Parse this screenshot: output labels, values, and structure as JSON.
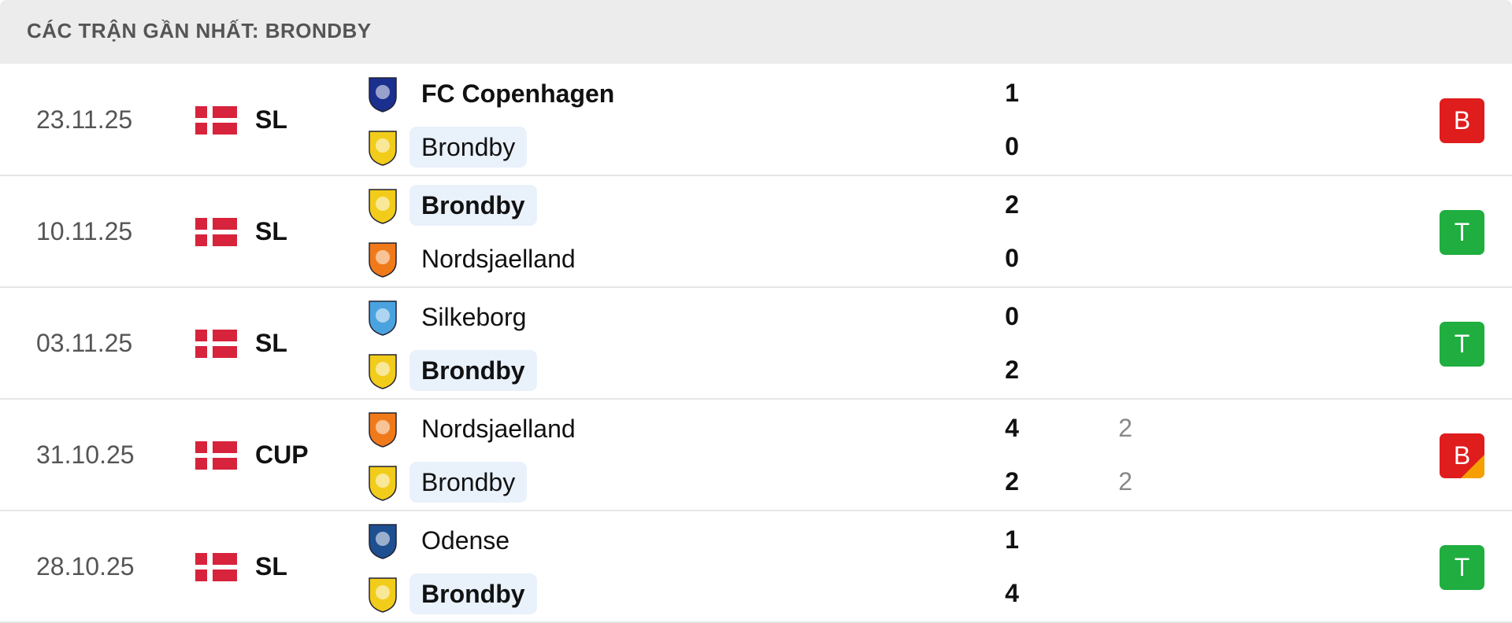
{
  "header": {
    "title": "CÁC TRẬN GẦN NHẤT: BRONDBY"
  },
  "matches": [
    {
      "date": "23.11.25",
      "league": "SL",
      "result": "B",
      "badge_color": "#df1d1d",
      "home": {
        "name": "FC Copenhagen",
        "score": 1,
        "bold": true,
        "highlight": false,
        "color": "#1b2f8f"
      },
      "away": {
        "name": "Brondby",
        "score": 0,
        "bold": false,
        "highlight": true,
        "color": "#f2cc1a"
      }
    },
    {
      "date": "10.11.25",
      "league": "SL",
      "result": "T",
      "badge_color": "#1fae3f",
      "home": {
        "name": "Brondby",
        "score": 2,
        "bold": true,
        "highlight": true,
        "color": "#f2cc1a"
      },
      "away": {
        "name": "Nordsjaelland",
        "score": 0,
        "bold": false,
        "highlight": false,
        "color": "#f07a1a"
      }
    },
    {
      "date": "03.11.25",
      "league": "SL",
      "result": "T",
      "badge_color": "#1fae3f",
      "home": {
        "name": "Silkeborg",
        "score": 0,
        "bold": false,
        "highlight": false,
        "color": "#4aa3df"
      },
      "away": {
        "name": "Brondby",
        "score": 2,
        "bold": true,
        "highlight": true,
        "color": "#f2cc1a"
      }
    },
    {
      "date": "31.10.25",
      "league": "CUP",
      "result": "B",
      "badge_color": "#df1d1d",
      "corner_color": "#f5a000",
      "home": {
        "name": "Nordsjaelland",
        "score": 4,
        "penalty": 2,
        "bold": false,
        "highlight": false,
        "color": "#f07a1a"
      },
      "away": {
        "name": "Brondby",
        "score": 2,
        "penalty": 2,
        "bold": false,
        "highlight": true,
        "color": "#f2cc1a"
      }
    },
    {
      "date": "28.10.25",
      "league": "SL",
      "result": "T",
      "badge_color": "#1fae3f",
      "home": {
        "name": "Odense",
        "score": 1,
        "bold": false,
        "highlight": false,
        "color": "#1d4f91"
      },
      "away": {
        "name": "Brondby",
        "score": 4,
        "bold": true,
        "highlight": true,
        "color": "#f2cc1a"
      }
    }
  ]
}
